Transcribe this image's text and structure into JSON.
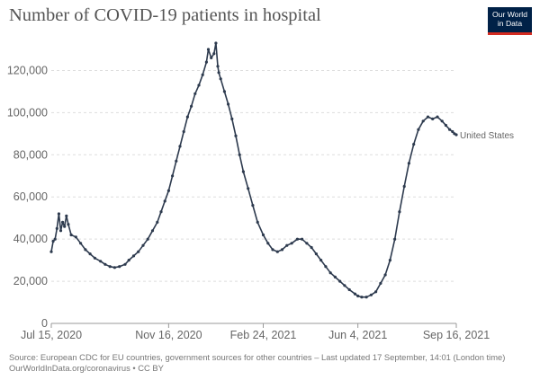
{
  "header": {
    "title": "Number of COVID-19 patients in hospital",
    "logo_line1": "Our World",
    "logo_line2": "in Data"
  },
  "footer": {
    "line1": "Source: European CDC for EU countries, government sources for other countries – Last updated 17 September, 14:01 (London time)",
    "line2": "OurWorldInData.org/coronavirus • CC BY"
  },
  "colors": {
    "series": "#2d3a4e",
    "grid": "#dddddd",
    "axis": "#666666",
    "text": "#666666",
    "title": "#555555",
    "logo_bg": "#002147",
    "logo_accent": "#d42b21"
  },
  "chart_data": {
    "type": "line",
    "title": "Number of COVID-19 patients in hospital",
    "xlabel": "",
    "ylabel": "",
    "ylim": [
      0,
      130000
    ],
    "xlim": [
      "2020-07-15",
      "2021-09-16"
    ],
    "yticks": [
      0,
      20000,
      40000,
      60000,
      80000,
      100000,
      120000
    ],
    "ytick_labels": [
      "0",
      "20,000",
      "40,000",
      "60,000",
      "80,000",
      "100,000",
      "120,000"
    ],
    "xticks": [
      "2020-07-15",
      "2020-11-16",
      "2021-02-24",
      "2021-06-04",
      "2021-09-16"
    ],
    "xtick_labels": [
      "Jul 15, 2020",
      "Nov 16, 2020",
      "Feb 24, 2021",
      "Jun 4, 2021",
      "Sep 16, 2021"
    ],
    "grid": "horizontal-dashed",
    "series": [
      {
        "name": "United States",
        "x": [
          "2020-07-15",
          "2020-07-17",
          "2020-07-19",
          "2020-07-21",
          "2020-07-23",
          "2020-07-25",
          "2020-07-27",
          "2020-07-29",
          "2020-07-31",
          "2020-08-02",
          "2020-08-05",
          "2020-08-10",
          "2020-08-15",
          "2020-08-20",
          "2020-08-25",
          "2020-08-30",
          "2020-09-05",
          "2020-09-10",
          "2020-09-15",
          "2020-09-20",
          "2020-09-25",
          "2020-10-01",
          "2020-10-05",
          "2020-10-10",
          "2020-10-15",
          "2020-10-20",
          "2020-10-25",
          "2020-10-30",
          "2020-11-04",
          "2020-11-08",
          "2020-11-12",
          "2020-11-16",
          "2020-11-20",
          "2020-11-24",
          "2020-11-28",
          "2020-12-02",
          "2020-12-06",
          "2020-12-10",
          "2020-12-14",
          "2020-12-18",
          "2020-12-22",
          "2020-12-26",
          "2020-12-28",
          "2020-12-31",
          "2021-01-03",
          "2021-01-05",
          "2021-01-07",
          "2021-01-08",
          "2021-01-10",
          "2021-01-14",
          "2021-01-18",
          "2021-01-22",
          "2021-01-26",
          "2021-01-30",
          "2021-02-03",
          "2021-02-08",
          "2021-02-13",
          "2021-02-18",
          "2021-02-24",
          "2021-03-01",
          "2021-03-06",
          "2021-03-11",
          "2021-03-16",
          "2021-03-21",
          "2021-03-26",
          "2021-04-01",
          "2021-04-06",
          "2021-04-11",
          "2021-04-16",
          "2021-04-21",
          "2021-04-26",
          "2021-05-01",
          "2021-05-06",
          "2021-05-11",
          "2021-05-16",
          "2021-05-21",
          "2021-05-26",
          "2021-06-01",
          "2021-06-04",
          "2021-06-08",
          "2021-06-13",
          "2021-06-18",
          "2021-06-23",
          "2021-06-28",
          "2021-07-03",
          "2021-07-08",
          "2021-07-13",
          "2021-07-18",
          "2021-07-23",
          "2021-07-28",
          "2021-08-02",
          "2021-08-07",
          "2021-08-12",
          "2021-08-17",
          "2021-08-22",
          "2021-08-27",
          "2021-09-01",
          "2021-09-05",
          "2021-09-09",
          "2021-09-12",
          "2021-09-14",
          "2021-09-16"
        ],
        "y": [
          34000,
          39000,
          40000,
          45000,
          52000,
          44000,
          48000,
          46000,
          51000,
          47000,
          42000,
          41000,
          38000,
          35000,
          33000,
          31000,
          29500,
          28000,
          27000,
          26500,
          27000,
          28000,
          30000,
          32000,
          34000,
          37000,
          40000,
          44000,
          48000,
          53000,
          58000,
          63000,
          70000,
          77000,
          84000,
          91000,
          98000,
          103000,
          109000,
          113000,
          118000,
          124000,
          130000,
          126000,
          128000,
          133000,
          122000,
          119000,
          116000,
          110000,
          104000,
          97000,
          89000,
          80000,
          72000,
          64000,
          56000,
          48000,
          42000,
          38000,
          35000,
          34000,
          35000,
          37000,
          38000,
          40000,
          40000,
          38000,
          36000,
          33000,
          30000,
          27000,
          24000,
          22000,
          20000,
          18000,
          16000,
          14000,
          13000,
          12500,
          12500,
          13500,
          15000,
          19000,
          23000,
          30000,
          40000,
          53000,
          65000,
          76000,
          85000,
          92000,
          96000,
          98000,
          97000,
          98000,
          96000,
          94000,
          92000,
          91000,
          90000,
          89500
        ]
      }
    ],
    "annotations": [
      {
        "series": "United States",
        "text": "United States"
      }
    ]
  }
}
